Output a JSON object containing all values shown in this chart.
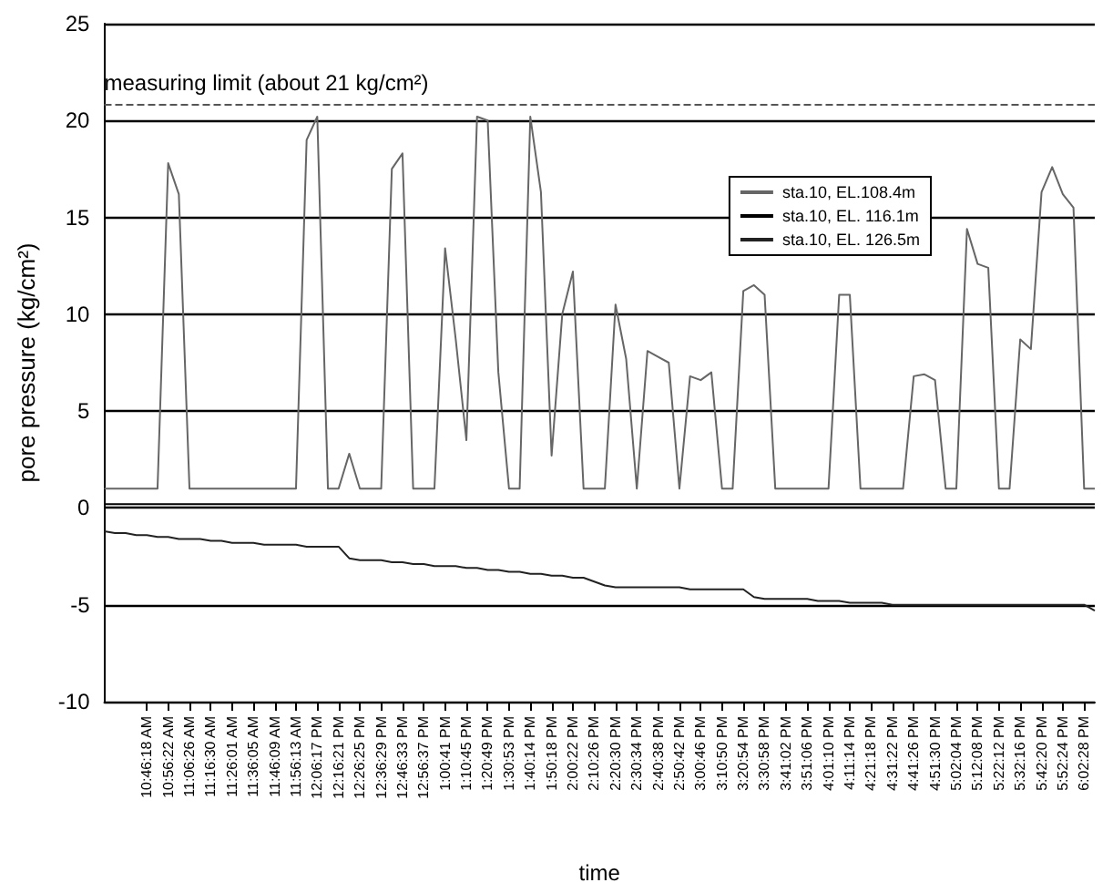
{
  "chart_data": {
    "type": "line",
    "xlabel": "time",
    "ylabel": "pore pressure (kg/cm²)",
    "categories": [
      null,
      null,
      null,
      null,
      "10:46:18 AM",
      null,
      "10:56:22 AM",
      null,
      "11:06:26 AM",
      null,
      "11:16:30 AM",
      null,
      "11:26:01 AM",
      null,
      "11:36:05 AM",
      null,
      "11:46:09 AM",
      null,
      "11:56:13 AM",
      null,
      "12:06:17 PM",
      null,
      "12:16:21 PM",
      null,
      "12:26:25 PM",
      null,
      "12:36:29 PM",
      null,
      "12:46:33 PM",
      null,
      "12:56:37 PM",
      null,
      "1:00:41 PM",
      null,
      "1:10:45 PM",
      null,
      "1:20:49 PM",
      null,
      "1:30:53 PM",
      null,
      "1:40:14 PM",
      null,
      "1:50:18 PM",
      null,
      "2:00:22 PM",
      null,
      "2:10:26 PM",
      null,
      "2:20:30 PM",
      null,
      "2:30:34 PM",
      null,
      "2:40:38 PM",
      null,
      "2:50:42 PM",
      null,
      "3:00:46 PM",
      null,
      "3:10:50 PM",
      null,
      "3:20:54 PM",
      null,
      "3:30:58 PM",
      null,
      "3:41:02 PM",
      null,
      "3:51:06 PM",
      null,
      "4:01:10 PM",
      null,
      "4:11:14 PM",
      null,
      "4:21:18 PM",
      null,
      "4:31:22 PM",
      null,
      "4:41:26 PM",
      null,
      "4:51:30 PM",
      null,
      "5:02:04 PM",
      null,
      "5:12:08 PM",
      null,
      "5:22:12 PM",
      null,
      "5:32:16 PM",
      null,
      "5:42:20 PM",
      null,
      "5:52:24 PM",
      null,
      "6:02:28 PM",
      null
    ],
    "ylim": [
      -10,
      25
    ],
    "yticks": [
      -10,
      -5,
      0,
      5,
      10,
      15,
      20,
      25
    ],
    "grid": "y",
    "legend": "right",
    "marker": "none",
    "line_style": "solid",
    "ref_lines": [
      {
        "axis": "y",
        "value": 20.8,
        "label": "measuring limit (about 21 kg/cm²)",
        "color": "#555555",
        "line_style": "dashed"
      }
    ],
    "series": [
      {
        "name": "sta.10, EL.108.4m",
        "color": "#666666",
        "values": [
          1,
          1,
          1,
          1,
          1,
          1,
          17.8,
          16.2,
          1,
          1,
          1,
          1,
          1,
          1,
          1,
          1,
          1,
          1,
          1,
          19,
          20.2,
          1,
          1,
          2.8,
          1,
          1,
          1,
          17.5,
          18.3,
          1,
          1,
          1,
          13.4,
          8.7,
          3.5,
          20.2,
          20,
          7,
          1,
          1,
          20.2,
          16.3,
          2.7,
          10,
          12.2,
          1,
          1,
          1,
          10.5,
          7.7,
          1,
          8.1,
          7.8,
          7.5,
          1,
          6.8,
          6.6,
          7,
          1,
          1,
          11.2,
          11.5,
          11,
          1,
          1,
          1,
          1,
          1,
          1,
          11,
          11,
          1,
          1,
          1,
          1,
          1,
          6.8,
          6.9,
          6.6,
          1,
          1,
          14.4,
          12.6,
          12.4,
          1,
          1,
          8.7,
          8.2,
          16.3,
          17.6,
          16.2,
          15.5,
          1,
          1
        ]
      },
      {
        "name": "sta.10, EL. 116.1m",
        "color": "#000000",
        "values": [
          0.2,
          0.2,
          0.2,
          0.2,
          0.2,
          0.2,
          0.2,
          0.2,
          0.2,
          0.2,
          0.2,
          0.2,
          0.2,
          0.2,
          0.2,
          0.2,
          0.2,
          0.2,
          0.2,
          0.2,
          0.2,
          0.2,
          0.2,
          0.2,
          0.2,
          0.2,
          0.2,
          0.2,
          0.2,
          0.2,
          0.2,
          0.2,
          0.2,
          0.2,
          0.2,
          0.2,
          0.2,
          0.2,
          0.2,
          0.2,
          0.2,
          0.2,
          0.2,
          0.2,
          0.2,
          0.2,
          0.2,
          0.2,
          0.2,
          0.2,
          0.2,
          0.2,
          0.2,
          0.2,
          0.2,
          0.2,
          0.2,
          0.2,
          0.2,
          0.2,
          0.2,
          0.2,
          0.2,
          0.2,
          0.2,
          0.2,
          0.2,
          0.2,
          0.2,
          0.2,
          0.2,
          0.2,
          0.2,
          0.2,
          0.2,
          0.2,
          0.2,
          0.2,
          0.2,
          0.2,
          0.2,
          0.2,
          0.2,
          0.2,
          0.2,
          0.2,
          0.2,
          0.2,
          0.2,
          0.2,
          0.2,
          0.2,
          0.2,
          0.2
        ]
      },
      {
        "name": "sta.10, EL. 126.5m",
        "color": "#222222",
        "values": [
          -1.2,
          -1.3,
          -1.3,
          -1.4,
          -1.4,
          -1.5,
          -1.5,
          -1.6,
          -1.6,
          -1.6,
          -1.7,
          -1.7,
          -1.8,
          -1.8,
          -1.8,
          -1.9,
          -1.9,
          -1.9,
          -1.9,
          -2,
          -2,
          -2,
          -2,
          -2.6,
          -2.7,
          -2.7,
          -2.7,
          -2.8,
          -2.8,
          -2.9,
          -2.9,
          -3,
          -3,
          -3,
          -3.1,
          -3.1,
          -3.2,
          -3.2,
          -3.3,
          -3.3,
          -3.4,
          -3.4,
          -3.5,
          -3.5,
          -3.6,
          -3.6,
          -3.8,
          -4,
          -4.1,
          -4.1,
          -4.1,
          -4.1,
          -4.1,
          -4.1,
          -4.1,
          -4.2,
          -4.2,
          -4.2,
          -4.2,
          -4.2,
          -4.2,
          -4.6,
          -4.7,
          -4.7,
          -4.7,
          -4.7,
          -4.7,
          -4.8,
          -4.8,
          -4.8,
          -4.9,
          -4.9,
          -4.9,
          -4.9,
          -5,
          -5,
          -5,
          -5,
          -5,
          -5,
          -5,
          -5,
          -5,
          -5,
          -5,
          -5,
          -5,
          -5,
          -5,
          -5,
          -5,
          -5,
          -5,
          -5.3
        ]
      }
    ]
  }
}
